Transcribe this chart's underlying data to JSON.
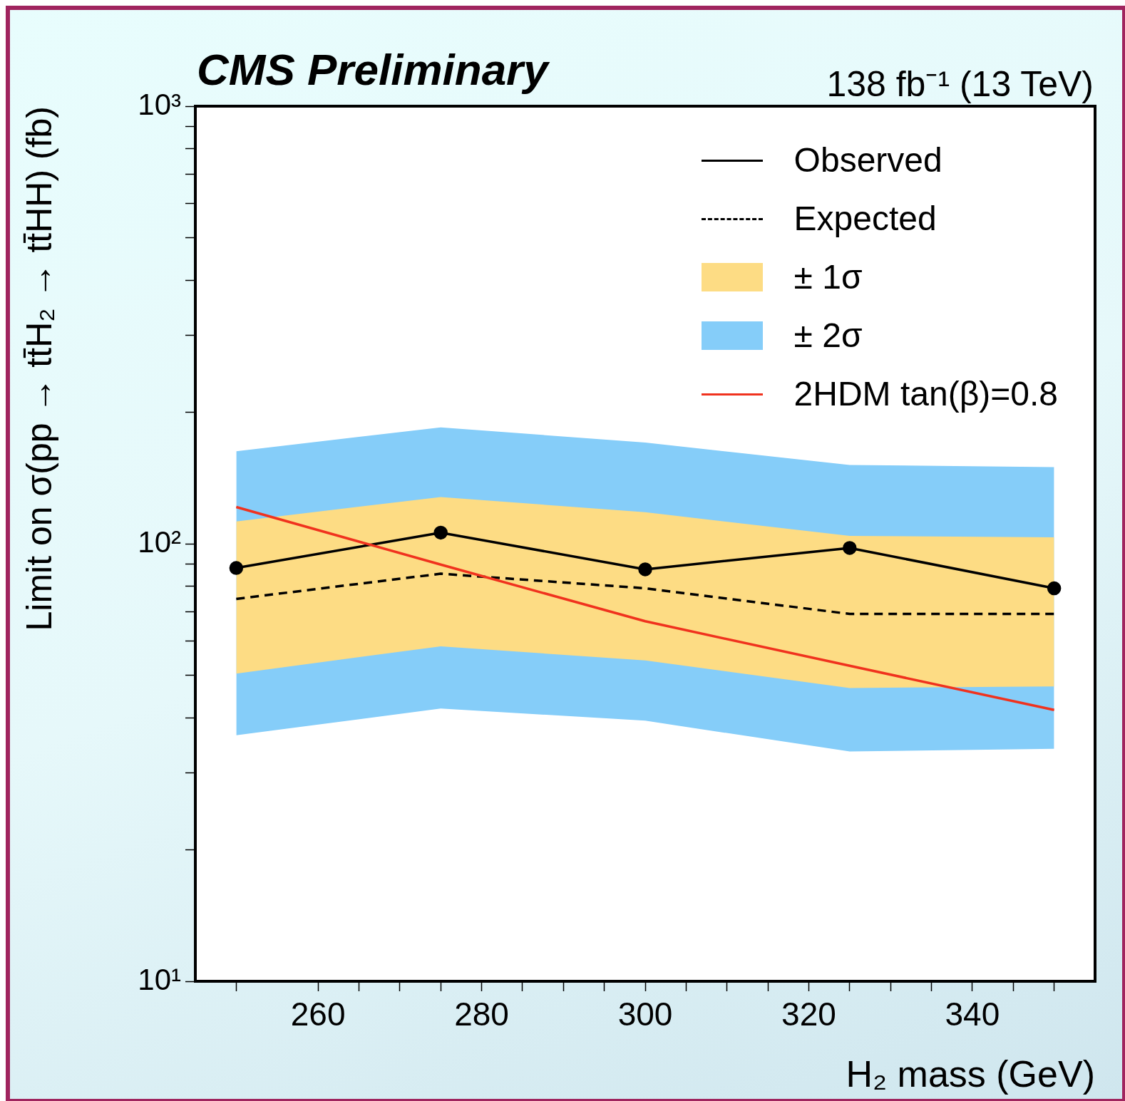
{
  "chart_data": {
    "type": "line",
    "title": "CMS Preliminary",
    "subtitle": "138 fb⁻¹ (13 TeV)",
    "xlabel": "H₂ mass (GeV)",
    "ylabel": "Limit on σ(pp → tt̄H₂ → tt̄HH) (fb)",
    "x": [
      250,
      275,
      300,
      325,
      350
    ],
    "series": [
      {
        "name": "± 2σ",
        "color": "#85cdf9",
        "values": [
          null,
          null,
          null,
          null,
          null
        ],
        "lower": [
          36.5,
          42.0,
          39.4,
          33.5,
          34.0
        ],
        "upper": [
          162.7,
          184.5,
          170.3,
          151.4,
          149.7
        ]
      },
      {
        "name": "± 1σ",
        "color": "#fddc84",
        "values": [
          null,
          null,
          null,
          null,
          null
        ],
        "lower": [
          50.5,
          58.3,
          54.1,
          46.8,
          47.2
        ],
        "upper": [
          112.4,
          127.9,
          118.0,
          104.2,
          103.4
        ]
      },
      {
        "name": "Observed",
        "color": "#000000",
        "marker": "circle",
        "line_style": "solid",
        "values": [
          88.0,
          106,
          87.4,
          97.8,
          79.1
        ]
      },
      {
        "name": "Expected",
        "color": "#000000",
        "marker": "none",
        "line_style": "dashed",
        "values": [
          74.8,
          85.4,
          79.1,
          69.1,
          69.1
        ]
      },
      {
        "name": "2HDM tan(β)=0.8",
        "color": "#f0321e",
        "marker": "none",
        "line_style": "solid",
        "values": [
          121.3,
          89.6,
          66.5,
          52.6,
          41.7
        ]
      }
    ],
    "log": "y",
    "grid": false,
    "legend": "top right",
    "xlim": [
      245,
      355
    ],
    "xticks": [
      {
        "value": 250,
        "label": null
      },
      260,
      {
        "value": 265,
        "label": null
      },
      {
        "value": 270,
        "label": null
      },
      {
        "value": 275,
        "label": null
      },
      280,
      {
        "value": 285,
        "label": null
      },
      {
        "value": 290,
        "label": null
      },
      {
        "value": 295,
        "label": null
      },
      300,
      {
        "value": 305,
        "label": null
      },
      {
        "value": 310,
        "label": null
      },
      {
        "value": 315,
        "label": null
      },
      320,
      {
        "value": 325,
        "label": null
      },
      {
        "value": 330,
        "label": null
      },
      {
        "value": 335,
        "label": null
      },
      340,
      {
        "value": 345,
        "label": null
      },
      {
        "value": 350,
        "label": null
      }
    ],
    "ylim": [
      10,
      1000
    ],
    "yticks": [
      {
        "value": 10,
        "label": "10¹"
      },
      {
        "value": 20,
        "label": null
      },
      {
        "value": 30,
        "label": null
      },
      {
        "value": 40,
        "label": null
      },
      {
        "value": 50,
        "label": null
      },
      {
        "value": 60,
        "label": null
      },
      {
        "value": 70,
        "label": null
      },
      {
        "value": 80,
        "label": null
      },
      {
        "value": 90,
        "label": null
      },
      {
        "value": 100,
        "label": "10²"
      },
      {
        "value": 200,
        "label": null
      },
      {
        "value": 300,
        "label": null
      },
      {
        "value": 400,
        "label": null
      },
      {
        "value": 500,
        "label": null
      },
      {
        "value": 600,
        "label": null
      },
      {
        "value": 700,
        "label": null
      },
      {
        "value": 800,
        "label": null
      },
      {
        "value": 900,
        "label": null
      },
      {
        "value": 1000,
        "label": "10³"
      }
    ]
  }
}
